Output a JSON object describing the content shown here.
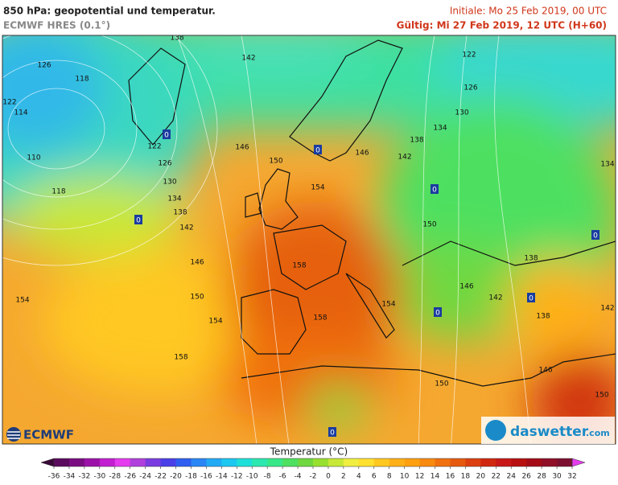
{
  "header": {
    "title": "850 hPa: geopotential und temperatur.",
    "model": "ECMWF HRES (0.1°)",
    "init": "Initiale: Mo 25 Feb 2019, 00 UTC",
    "valid": "Gültig: Mi 27 Feb 2019, 12 UTC (H+60)"
  },
  "map": {
    "contour_labels": [
      "138",
      "142",
      "122",
      "126",
      "118",
      "126",
      "122",
      "114",
      "130",
      "134",
      "138",
      "122",
      "146",
      "146",
      "142",
      "126",
      "110",
      "150",
      "134",
      "130",
      "154",
      "118",
      "134",
      "138",
      "150",
      "142",
      "146",
      "158",
      "138",
      "146",
      "142",
      "154",
      "150",
      "154",
      "142",
      "158",
      "154",
      "138",
      "158",
      "146",
      "150",
      "150"
    ],
    "markers": [
      "0",
      "0",
      "0",
      "0",
      "0",
      "0",
      "0",
      "0"
    ]
  },
  "legend": {
    "title": "Temperatur (°C)",
    "ticks": [
      -36,
      -34,
      -32,
      -30,
      -28,
      -26,
      -24,
      -22,
      -20,
      -18,
      -16,
      -14,
      -12,
      -10,
      -8,
      -6,
      -4,
      -2,
      0,
      2,
      4,
      6,
      8,
      10,
      12,
      14,
      16,
      18,
      20,
      22,
      24,
      26,
      28,
      30,
      32
    ],
    "colors": [
      "#3a0838",
      "#5a0b5e",
      "#7a0d82",
      "#9c12a8",
      "#c21fd0",
      "#e43cee",
      "#b040dc",
      "#7a3ce0",
      "#4b3fe8",
      "#2f5ef0",
      "#2a86f5",
      "#22aaf5",
      "#1cc8f0",
      "#1fe0d8",
      "#2de8b0",
      "#38e888",
      "#4ee060",
      "#6fd840",
      "#98e030",
      "#c8e838",
      "#f0ee40",
      "#ffe030",
      "#ffc820",
      "#ffb018",
      "#ffa010",
      "#f88a10",
      "#f07010",
      "#e65a10",
      "#dc4010",
      "#d02810",
      "#c81818",
      "#b81010",
      "#a40c18",
      "#901028",
      "#7c1030",
      "#e43cee"
    ]
  },
  "logos": {
    "ecmwf": "ECMWF",
    "daswetter": "daswetter",
    "suffix": ".com"
  }
}
